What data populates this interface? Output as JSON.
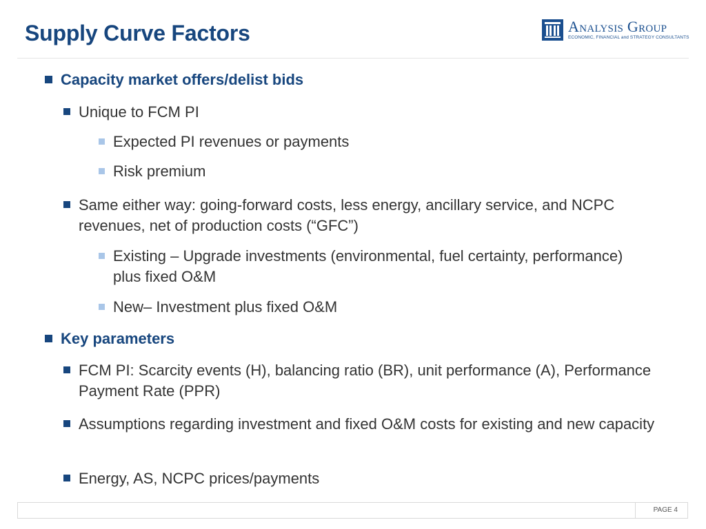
{
  "slide": {
    "title": "Supply Curve Factors"
  },
  "logo": {
    "name": "Analysis Group",
    "tagline": "ECONOMIC, FINANCIAL and STRATEGY CONSULTANTS",
    "icon": "columns-building-icon"
  },
  "bullets": [
    {
      "level": 1,
      "text": "Capacity market offers/delist bids"
    },
    {
      "level": 2,
      "text": "Unique to FCM PI"
    },
    {
      "level": 3,
      "text": "Expected PI revenues or payments"
    },
    {
      "level": 3,
      "text": "Risk premium"
    },
    {
      "level": 2,
      "text": "Same either way:  going-forward costs, less energy, ancillary service, and NCPC revenues, net of production costs (“GFC”)"
    },
    {
      "level": 3,
      "text": "Existing – Upgrade investments (environmental, fuel certainty, performance) plus fixed O&M"
    },
    {
      "level": 3,
      "text": "New– Investment plus fixed O&M"
    },
    {
      "level": 1,
      "text": "Key parameters"
    },
    {
      "level": 2,
      "text": "FCM PI:  Scarcity events (H), balancing ratio (BR), unit performance (A), Performance Payment Rate (PPR)"
    },
    {
      "level": 2,
      "text": "Assumptions regarding investment and fixed O&M costs for existing and new capacity"
    },
    {
      "level": 2,
      "text": "Energy, AS, NCPC prices/payments"
    }
  ],
  "footer": {
    "page_label": "PAGE 4"
  },
  "colors": {
    "title": "#17467e",
    "heading_bullet": "#17467e",
    "sub_bullet": "#17467e",
    "sub_sub_bullet": "#a9c6e8",
    "body_text": "#333333"
  }
}
